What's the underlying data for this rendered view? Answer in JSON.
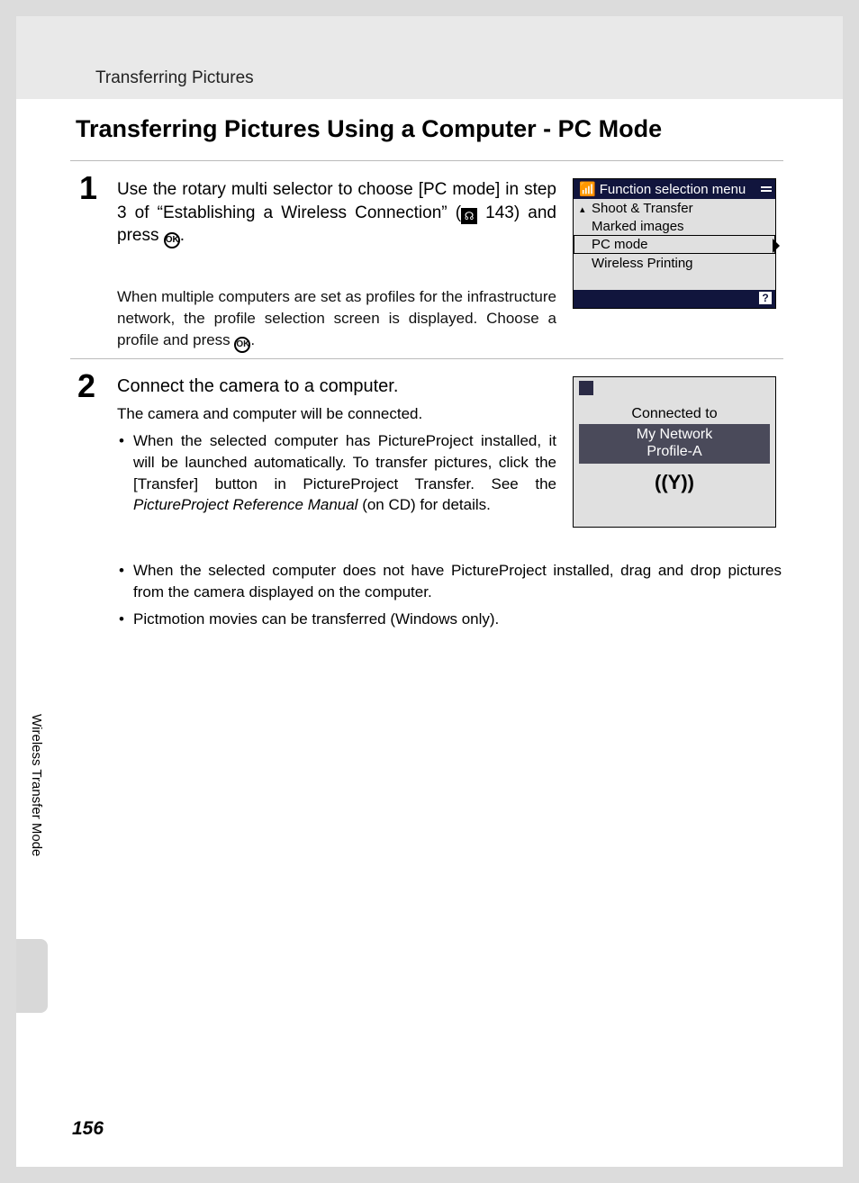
{
  "page": {
    "running_head": "Transferring Pictures",
    "title": "Transferring Pictures Using a Computer - PC Mode",
    "side_label": "Wireless Transfer Mode",
    "number": "156"
  },
  "step1": {
    "num": "1",
    "text_a": "Use the rotary multi selector to choose [PC mode] in step 3 of “Establishing a Wireless Connection” (",
    "ref_num": " 143) and press ",
    "period": ".",
    "sub": "When multiple computers are set as profiles for the infrastructure network, the profile selection screen is displayed. Choose a profile and press ",
    "sub_end": "."
  },
  "step2": {
    "num": "2",
    "head": "Connect the camera to a computer.",
    "sub": "The camera and computer will be connected.",
    "b1_a": "When the selected computer has PictureProject installed, it will be launched automatically. To transfer pictures, click the [Transfer] button in PictureProject Transfer. See the ",
    "b1_ital": "PictureProject Reference Manual",
    "b1_b": " (on CD) for details.",
    "b2": "When the selected computer does not have PictureProject installed, drag and drop pictures from the camera displayed on the computer.",
    "b3": "Pictmotion movies can be transferred (Windows only)."
  },
  "screen1": {
    "title": "Function selection menu",
    "items": [
      "Shoot & Transfer",
      "Marked images",
      "PC mode",
      "Wireless Printing"
    ],
    "selected_index": 2,
    "help_glyph": "?",
    "bg": "#e0e0e0",
    "header_bg": "#11153d"
  },
  "screen2": {
    "connected": "Connected to",
    "line1": "My Network",
    "line2": "Profile-A",
    "wifi_glyph": "((Υ))",
    "bg": "#e0e0e0"
  },
  "glyphs": {
    "ok": "OK",
    "camera_icon": "☰"
  },
  "colors": {
    "page_bg": "#ffffff",
    "outer_bg": "#dcdcdc",
    "header_strip": "#e9e9e9",
    "screen_header": "#11153d",
    "screen_body": "#e0e0e0",
    "screen_band": "#4a4a5a"
  },
  "fonts": {
    "title_pt": 27,
    "body_pt": 19,
    "sub_pt": 17,
    "screen_pt": 15
  }
}
